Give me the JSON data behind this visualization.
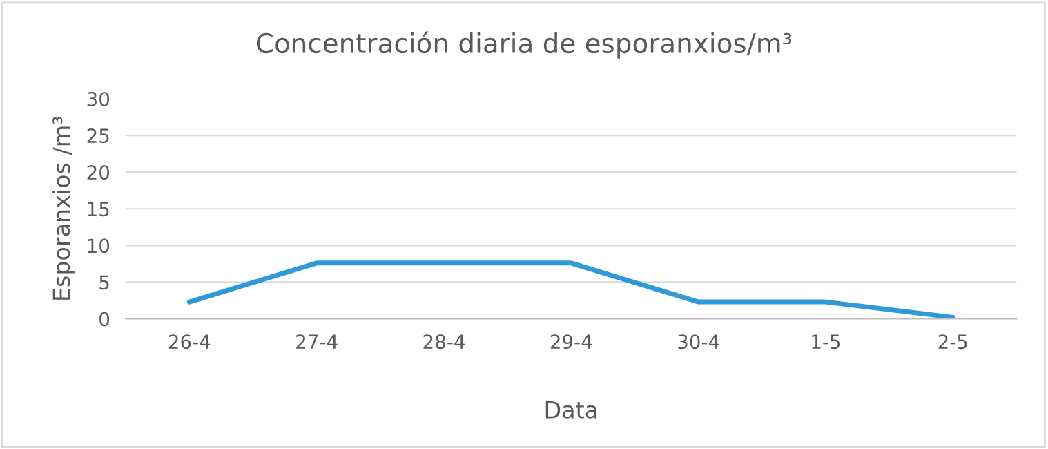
{
  "chart_data": {
    "type": "line",
    "title": "Concentración diaria de esporanxios/m³",
    "xlabel": "Data",
    "ylabel": "Esporanxios /m³",
    "categories": [
      "26-4",
      "27-4",
      "28-4",
      "29-4",
      "30-4",
      "1-5",
      "2-5"
    ],
    "series": [
      {
        "color": "#2e9bd8",
        "values": [
          2.3,
          7.6,
          7.6,
          7.6,
          2.3,
          2.3,
          0.2
        ]
      }
    ],
    "ylim": [
      0,
      30
    ],
    "yticks": [
      0,
      5,
      10,
      15,
      20,
      25,
      30
    ],
    "grid": "y",
    "marker": "none",
    "line_style": "solid"
  }
}
